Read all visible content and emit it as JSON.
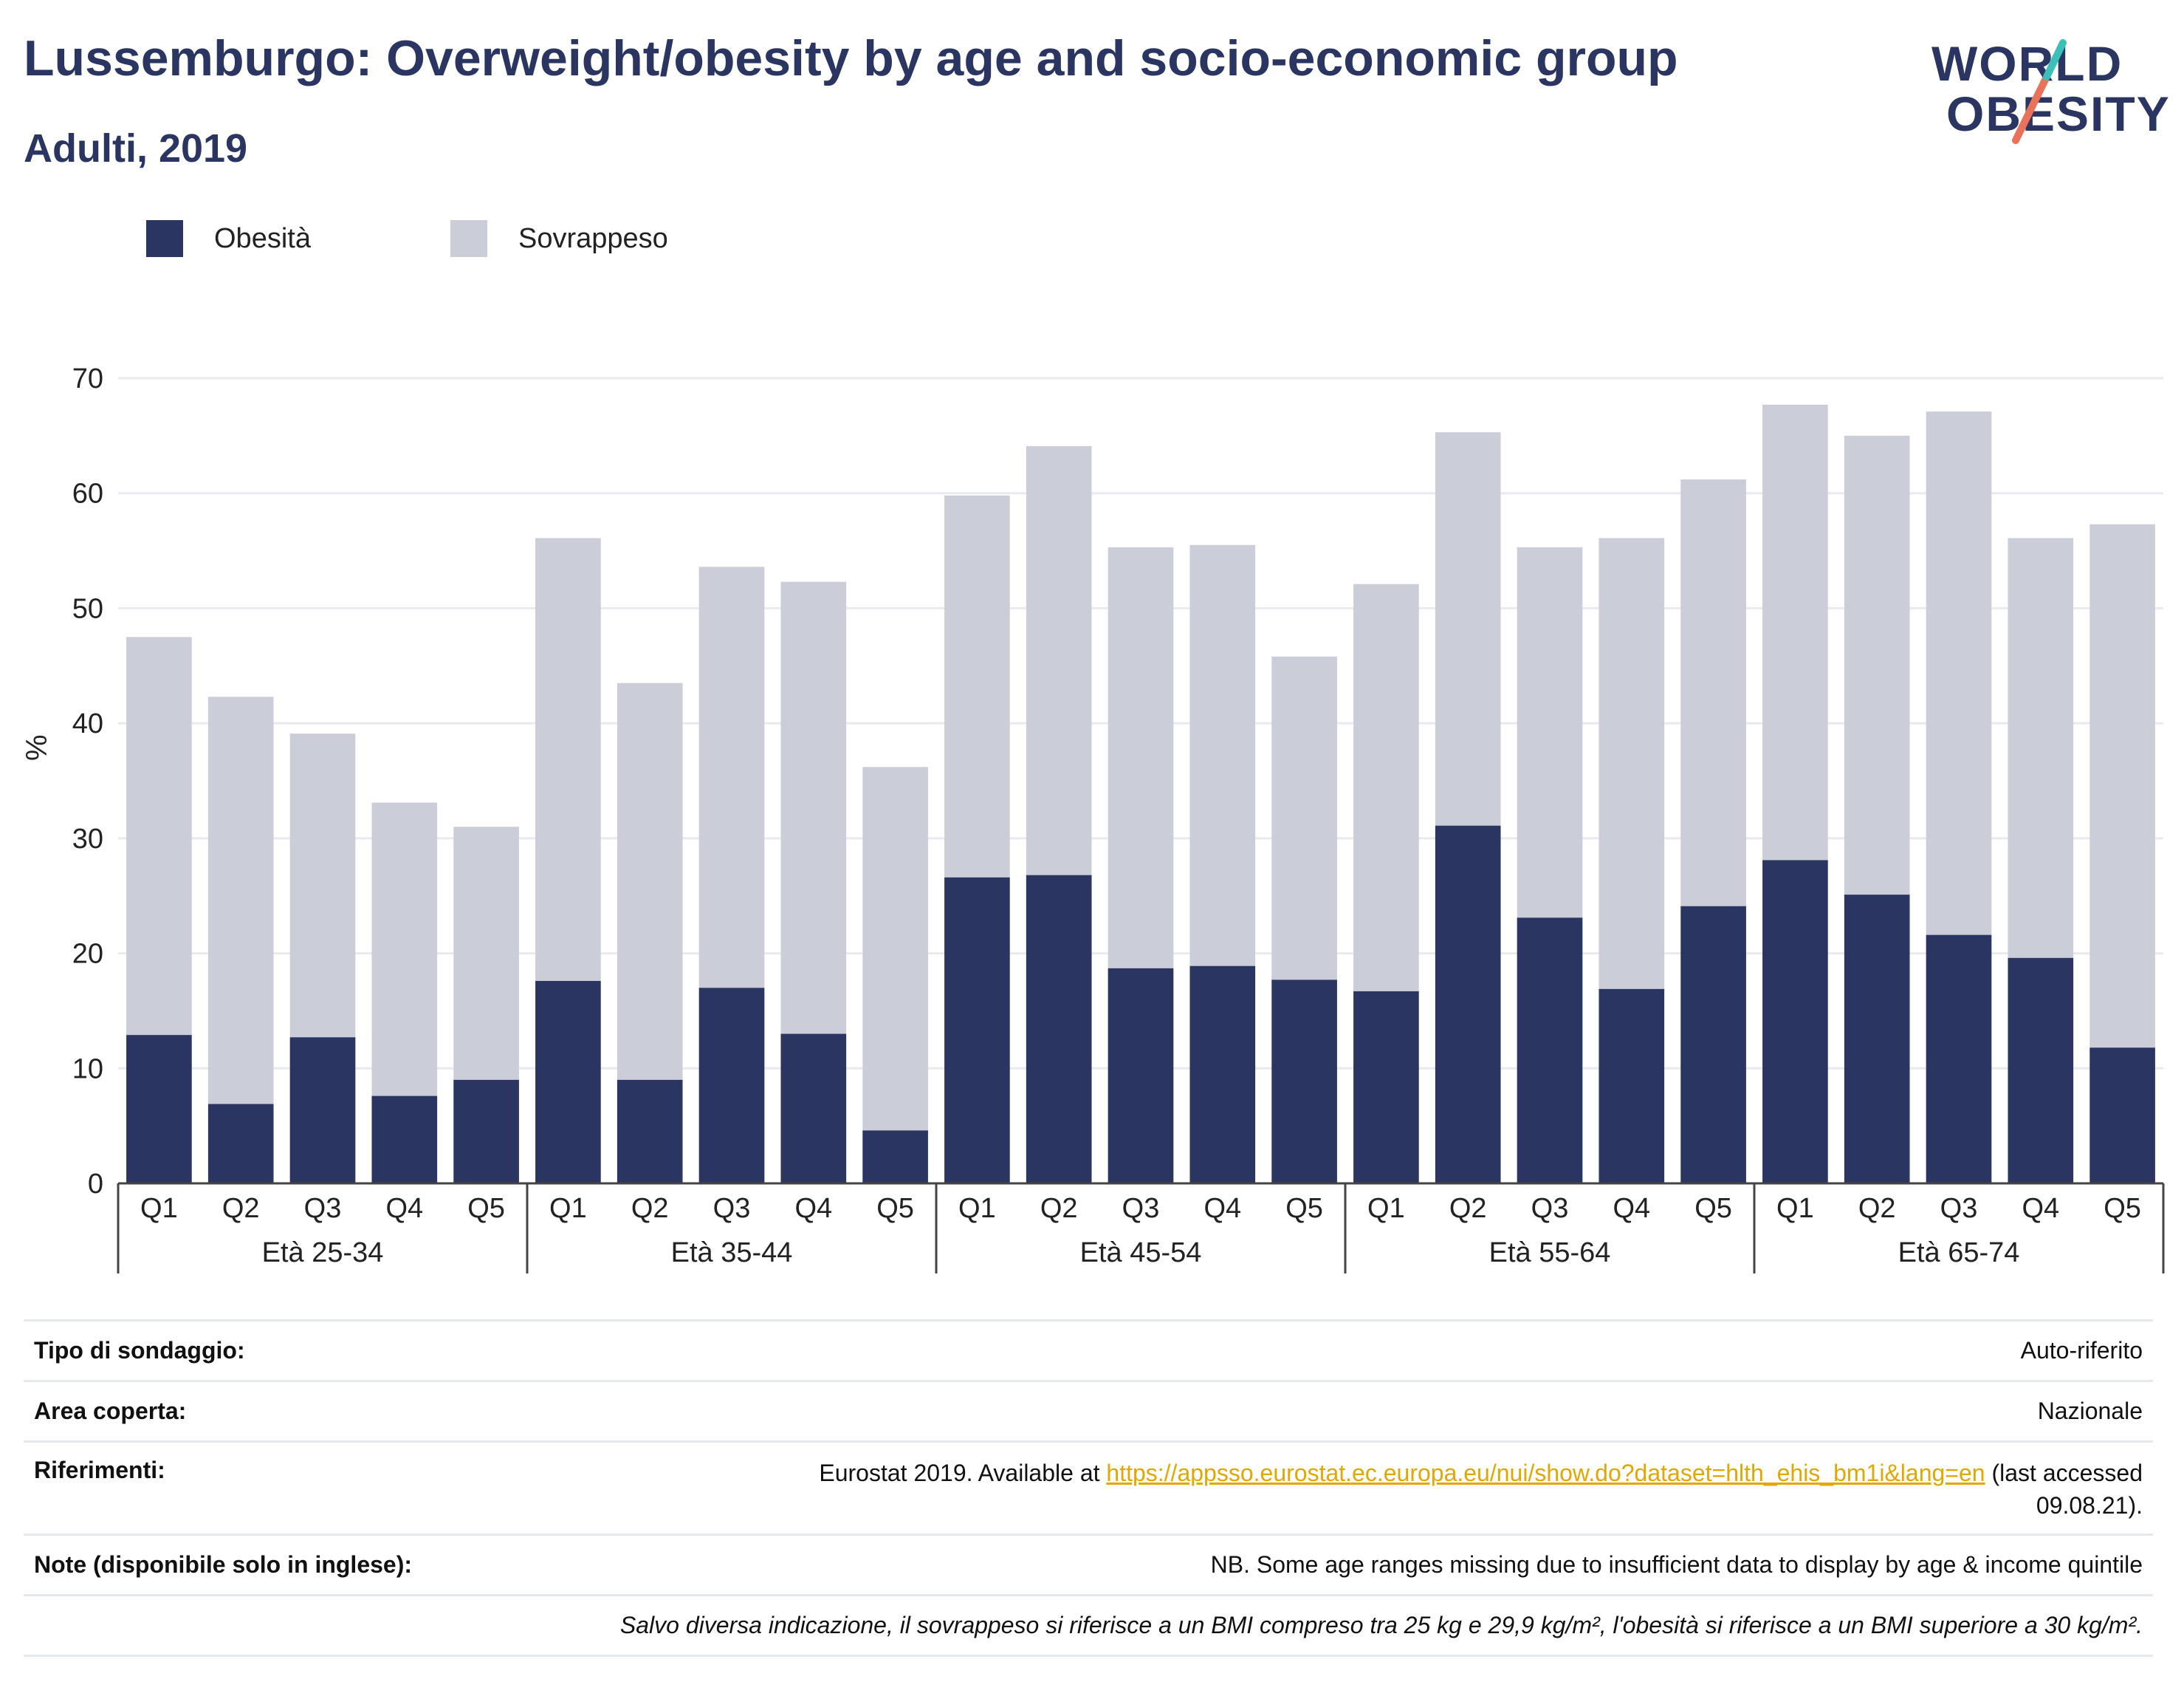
{
  "header": {
    "title": "Lussemburgo: Overweight/obesity by age and socio-economic group",
    "subtitle": "Adulti, 2019"
  },
  "logo": {
    "line1": "WORLD",
    "line2": "OBESITY",
    "accent_teal": "#3bbfb8",
    "accent_coral": "#e8735a"
  },
  "colors": {
    "obesity": "#2a3561",
    "overweight": "#cbcdd9"
  },
  "chart_data": {
    "type": "bar",
    "stacked": true,
    "ylabel": "%",
    "ylim": [
      0,
      70
    ],
    "yticks": [
      0,
      10,
      20,
      30,
      40,
      50,
      60,
      70
    ],
    "grid": true,
    "legend_position": "top-left",
    "groups": [
      "Età 25-34",
      "Età 35-44",
      "Età 45-54",
      "Età 55-64",
      "Età 65-74"
    ],
    "categories": [
      "Q1",
      "Q2",
      "Q3",
      "Q4",
      "Q5"
    ],
    "series": [
      {
        "name": "Obesità",
        "values": [
          [
            12.9,
            6.9,
            12.7,
            7.6,
            9.0
          ],
          [
            17.6,
            9.0,
            17.0,
            13.0,
            4.6
          ],
          [
            26.6,
            26.8,
            18.7,
            18.9,
            17.7
          ],
          [
            16.7,
            31.1,
            23.1,
            16.9,
            24.1
          ],
          [
            28.1,
            25.1,
            21.6,
            19.6,
            11.8
          ]
        ]
      },
      {
        "name": "Sovrappeso",
        "values": [
          [
            34.6,
            35.4,
            26.4,
            25.5,
            22.0
          ],
          [
            38.5,
            34.5,
            36.6,
            39.3,
            31.6
          ],
          [
            33.2,
            37.3,
            36.6,
            36.6,
            28.1
          ],
          [
            35.4,
            34.2,
            32.2,
            39.2,
            37.1
          ],
          [
            39.6,
            39.9,
            45.5,
            36.5,
            45.5
          ]
        ]
      }
    ]
  },
  "info_table": {
    "survey_type": {
      "label": "Tipo di sondaggio:",
      "value": "Auto-riferito"
    },
    "area": {
      "label": "Area coperta:",
      "value": "Nazionale"
    },
    "references": {
      "label": "Riferimenti:",
      "prefix": "Eurostat 2019. Available at ",
      "link": "https://appsso.eurostat.ec.europa.eu/nui/show.do?dataset=hlth_ehis_bm1i&lang=en",
      "suffix_1": " (last accessed",
      "suffix_2": "09.08.21)."
    },
    "notes": {
      "label": "Note (disponibile solo in inglese):",
      "value": "NB. Some age ranges missing due to insufficient data to display by age & income quintile"
    },
    "footnote": "Salvo diversa indicazione, il sovrappeso si riferisce a un BMI compreso tra 25 kg e 29,9 kg/m², l'obesità si riferisce a un BMI superiore a 30 kg/m²."
  }
}
